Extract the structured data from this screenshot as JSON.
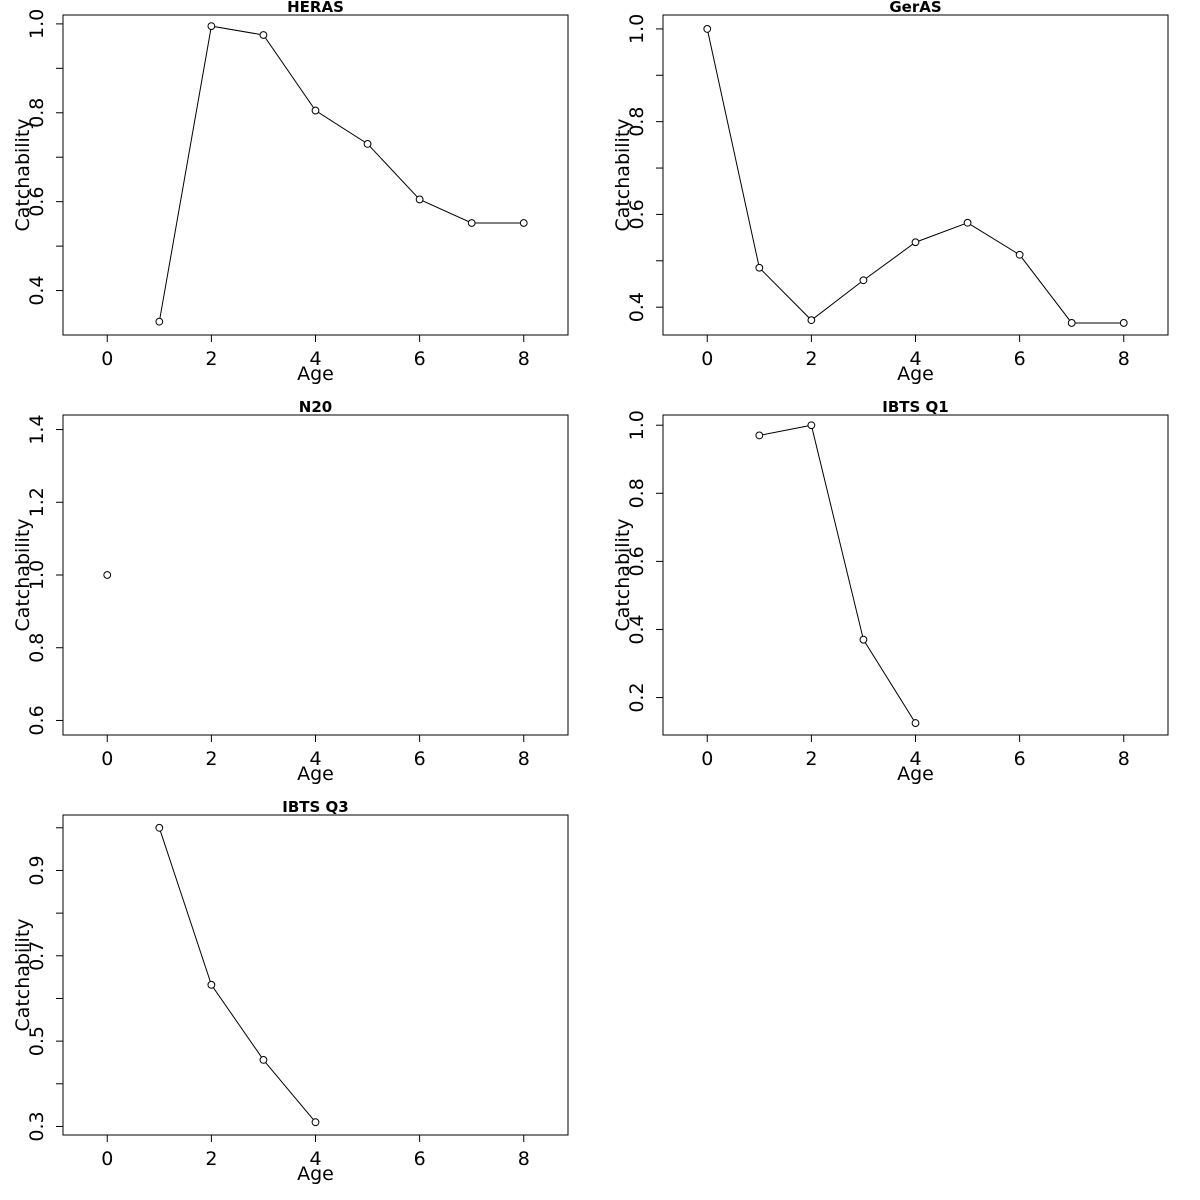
{
  "chart_data": [
    {
      "type": "line",
      "title": "HERAS",
      "xlabel": "Age",
      "ylabel": "Catchability",
      "xlim": [
        -0.85,
        8.85
      ],
      "ylim": [
        0.3,
        1.02
      ],
      "x_ticks": [
        0,
        2,
        4,
        6,
        8
      ],
      "x_tick_labels": [
        "0",
        "2",
        "4",
        "6",
        "8"
      ],
      "y_ticks": [
        0.4,
        0.5,
        0.6,
        0.7,
        0.8,
        0.9,
        1.0
      ],
      "y_tick_labels": [
        "0.4",
        "",
        "0.6",
        "",
        "0.8",
        "",
        "1.0"
      ],
      "grid": false,
      "x": [
        1,
        2,
        3,
        4,
        5,
        6,
        7,
        8
      ],
      "values": [
        0.33,
        0.995,
        0.975,
        0.805,
        0.73,
        0.605,
        0.552,
        0.552
      ]
    },
    {
      "type": "line",
      "title": "GerAS",
      "xlabel": "Age",
      "ylabel": "Catchability",
      "xlim": [
        -0.85,
        8.85
      ],
      "ylim": [
        0.34,
        1.03
      ],
      "x_ticks": [
        0,
        2,
        4,
        6,
        8
      ],
      "x_tick_labels": [
        "0",
        "2",
        "4",
        "6",
        "8"
      ],
      "y_ticks": [
        0.4,
        0.5,
        0.6,
        0.7,
        0.8,
        0.9,
        1.0
      ],
      "y_tick_labels": [
        "0.4",
        "",
        "0.6",
        "",
        "0.8",
        "",
        "1.0"
      ],
      "grid": false,
      "x": [
        0,
        1,
        2,
        3,
        4,
        5,
        6,
        7,
        8
      ],
      "values": [
        1.0,
        0.485,
        0.372,
        0.458,
        0.54,
        0.582,
        0.513,
        0.366,
        0.366
      ]
    },
    {
      "type": "line",
      "title": "N20",
      "xlabel": "Age",
      "ylabel": "Catchability",
      "xlim": [
        -0.85,
        8.85
      ],
      "ylim": [
        0.56,
        1.44
      ],
      "x_ticks": [
        0,
        2,
        4,
        6,
        8
      ],
      "x_tick_labels": [
        "0",
        "2",
        "4",
        "6",
        "8"
      ],
      "y_ticks": [
        0.6,
        0.8,
        1.0,
        1.2,
        1.4
      ],
      "y_tick_labels": [
        "0.6",
        "0.8",
        "1.0",
        "1.2",
        "1.4"
      ],
      "grid": false,
      "x": [
        0
      ],
      "values": [
        1.0
      ]
    },
    {
      "type": "line",
      "title": "IBTS Q1",
      "xlabel": "Age",
      "ylabel": "Catchability",
      "xlim": [
        -0.85,
        8.85
      ],
      "ylim": [
        0.09,
        1.03
      ],
      "x_ticks": [
        0,
        2,
        4,
        6,
        8
      ],
      "x_tick_labels": [
        "0",
        "2",
        "4",
        "6",
        "8"
      ],
      "y_ticks": [
        0.2,
        0.4,
        0.6,
        0.8,
        1.0
      ],
      "y_tick_labels": [
        "0.2",
        "0.4",
        "0.6",
        "0.8",
        "1.0"
      ],
      "grid": false,
      "x": [
        1,
        2,
        3,
        4
      ],
      "values": [
        0.97,
        1.0,
        0.37,
        0.125
      ]
    },
    {
      "type": "line",
      "title": "IBTS Q3",
      "xlabel": "Age",
      "ylabel": "Catchability",
      "xlim": [
        -0.85,
        8.85
      ],
      "ylim": [
        0.28,
        1.03
      ],
      "x_ticks": [
        0,
        2,
        4,
        6,
        8
      ],
      "x_tick_labels": [
        "0",
        "2",
        "4",
        "6",
        "8"
      ],
      "y_ticks": [
        0.3,
        0.4,
        0.5,
        0.6,
        0.7,
        0.8,
        0.9,
        1.0
      ],
      "y_tick_labels": [
        "0.3",
        "",
        "0.5",
        "",
        "0.7",
        "",
        "0.9",
        ""
      ],
      "grid": false,
      "x": [
        1,
        2,
        3,
        4
      ],
      "values": [
        1.0,
        0.632,
        0.456,
        0.31
      ]
    }
  ]
}
